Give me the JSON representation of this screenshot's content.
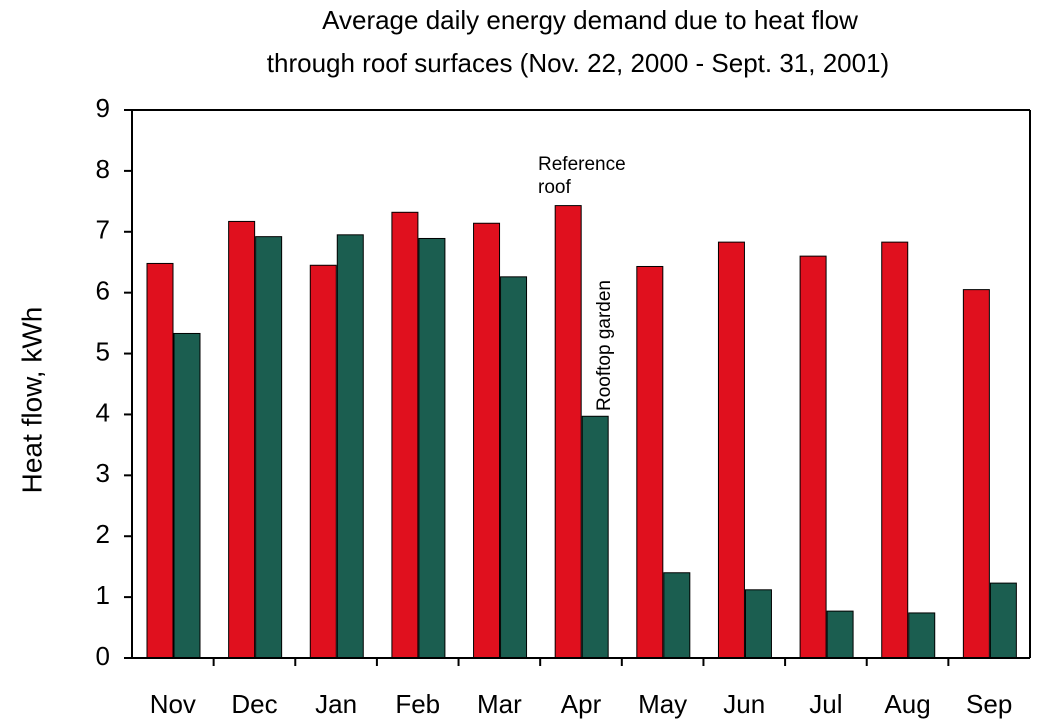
{
  "chart_data": {
    "type": "bar",
    "title": [
      "Average daily energy demand due to heat flow",
      "through roof surfaces (Nov. 22, 2000 - Sept. 31, 2001)"
    ],
    "y_label": "Heat flow, kWh",
    "categories": [
      "Nov",
      "Dec",
      "Jan",
      "Feb",
      "Mar",
      "Apr",
      "May",
      "Jun",
      "Jul",
      "Aug",
      "Sep"
    ],
    "series": [
      {
        "color": "#e0101e",
        "values": [
          6.48,
          7.17,
          6.45,
          7.32,
          7.14,
          7.43,
          6.43,
          6.83,
          6.6,
          6.83,
          6.05
        ]
      },
      {
        "color": "#1b5e50",
        "values": [
          5.33,
          6.92,
          6.95,
          6.89,
          6.26,
          3.97,
          1.4,
          1.12,
          0.77,
          0.74,
          1.23
        ]
      }
    ],
    "annotations": [
      [
        "Reference",
        "roof"
      ],
      [
        "Rooftop garden"
      ]
    ],
    "ylim": [
      0,
      9
    ],
    "yticks": [
      0,
      1,
      2,
      3,
      4,
      5,
      6,
      7,
      8,
      9
    ],
    "grid": false
  }
}
